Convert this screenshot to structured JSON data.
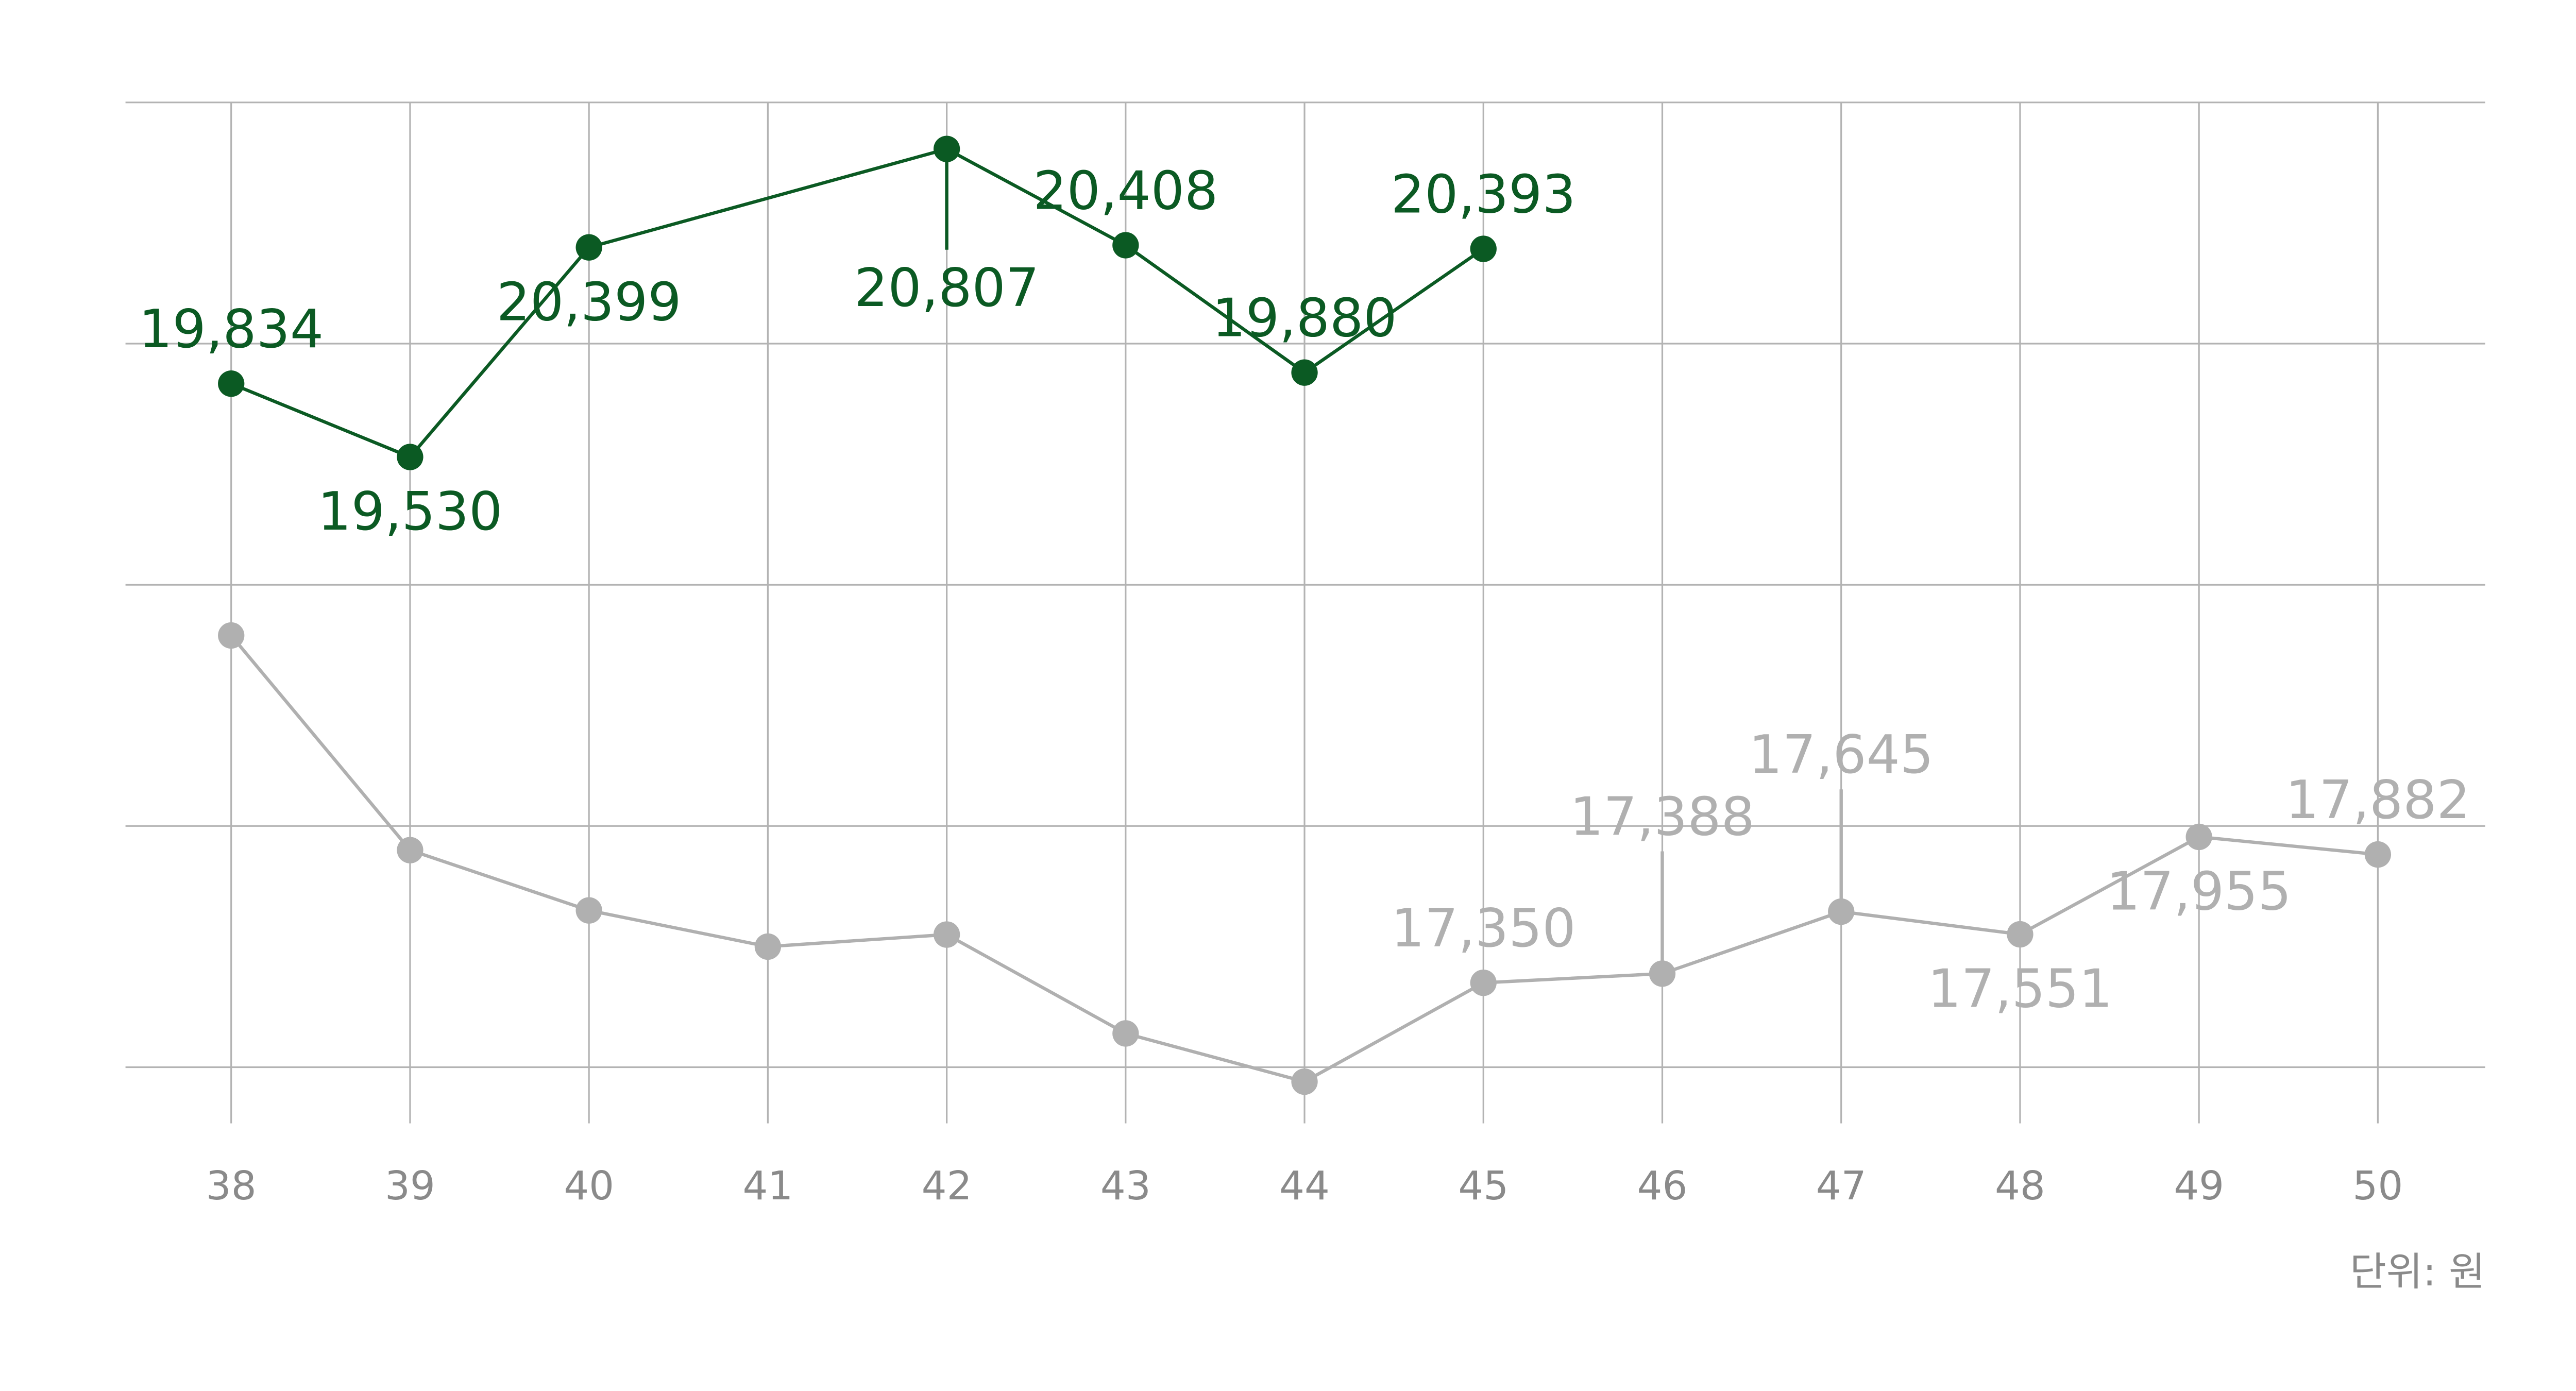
{
  "chart_data": {
    "type": "line",
    "x": [
      38,
      39,
      40,
      41,
      42,
      43,
      44,
      45,
      46,
      47,
      48,
      49,
      50
    ],
    "x_tick_labels": [
      "38",
      "39",
      "40",
      "41",
      "42",
      "43",
      "44",
      "45",
      "46",
      "47",
      "48",
      "49",
      "50"
    ],
    "ylim": [
      17000,
      21000
    ],
    "y_gridlines": [
      17000,
      18000,
      19000,
      20000,
      21000
    ],
    "y_tick_labels_shown": false,
    "grid": true,
    "unit_label": "단위: 원",
    "series": [
      {
        "color": "#0b5a23",
        "values": [
          19834,
          19530,
          20399,
          null,
          20807,
          20408,
          19880,
          20393,
          null,
          null,
          null,
          null,
          null
        ],
        "data_labels": [
          "19,834",
          "19,530",
          "20,399",
          "",
          "20,807",
          "20,408",
          "19,880",
          "20,393",
          "",
          "",
          "",
          "",
          ""
        ],
        "label_placement": [
          "above",
          "below",
          "below",
          "",
          "below-leader",
          "above",
          "above",
          "above",
          "",
          "",
          "",
          "",
          ""
        ]
      },
      {
        "color": "#b0b0b0",
        "values": [
          18790,
          17900,
          17650,
          17500,
          17550,
          17140,
          16940,
          17350,
          17388,
          17645,
          17551,
          17955,
          17882
        ],
        "data_labels": [
          "",
          "",
          "",
          "",
          "",
          "",
          "",
          "17,350",
          "17,388",
          "17,645",
          "17,551",
          "17,955",
          "17,882"
        ],
        "label_placement": [
          "",
          "",
          "",
          "",
          "",
          "",
          "",
          "above",
          "above-leader",
          "above-leader",
          "below",
          "below",
          "above"
        ]
      }
    ]
  }
}
